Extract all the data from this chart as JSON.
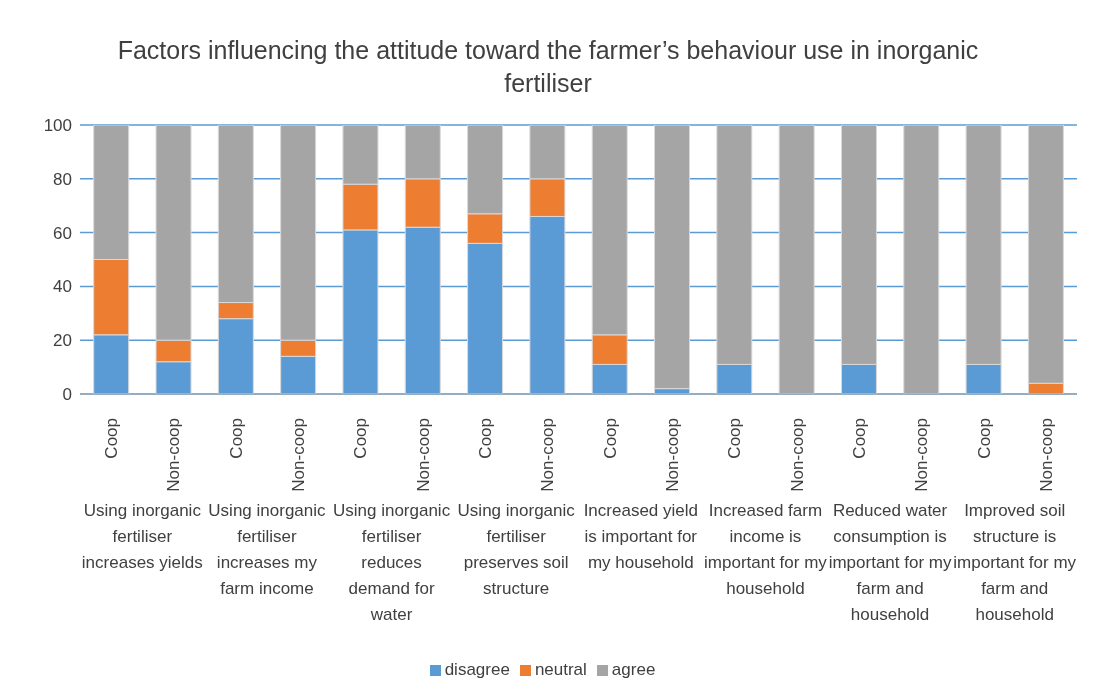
{
  "chart_data": {
    "type": "bar",
    "title": "Factors influencing the attitude toward the farmer’s behaviour use in inorganic fertiliser",
    "categories": [
      "Coop",
      "Non-coop",
      "Coop",
      "Non-coop",
      "Coop",
      "Non-coop",
      "Coop",
      "Non-coop",
      "Coop",
      "Non-coop",
      "Coop",
      "Non-coop",
      "Coop",
      "Non-coop",
      "Coop",
      "Non-coop"
    ],
    "series": [
      {
        "name": "disagree",
        "color": "#5b9bd5",
        "values": [
          22,
          12,
          28,
          14,
          61,
          62,
          56,
          66,
          11,
          2,
          11,
          0,
          11,
          0,
          11,
          0
        ]
      },
      {
        "name": "neutral",
        "color": "#ed7d31",
        "values": [
          28,
          8,
          6,
          6,
          17,
          18,
          11,
          14,
          11,
          0,
          0,
          0,
          0,
          0,
          0,
          4
        ]
      },
      {
        "name": "agree",
        "color": "#a5a5a5",
        "values": [
          50,
          80,
          66,
          80,
          22,
          20,
          33,
          20,
          78,
          98,
          89,
          100,
          89,
          100,
          89,
          96
        ]
      }
    ],
    "annotations": [
      "Using inorganic fertiliser increases yields",
      "Using inorganic fertiliser increases my farm income",
      "Using inorganic fertiliser reduces demand for water",
      "Using inorganic fertiliser preserves soil structure",
      "Increased yield is important for my household",
      "Increased farm income is important for my household",
      "Reduced water consumption is important for my farm and household",
      "Improved soil structure is important for my farm and household"
    ],
    "stacked": true,
    "ylim": [
      0,
      100
    ],
    "yticks": [
      0,
      20,
      40,
      60,
      80,
      100
    ],
    "grid": "y",
    "legend": "bottom"
  }
}
